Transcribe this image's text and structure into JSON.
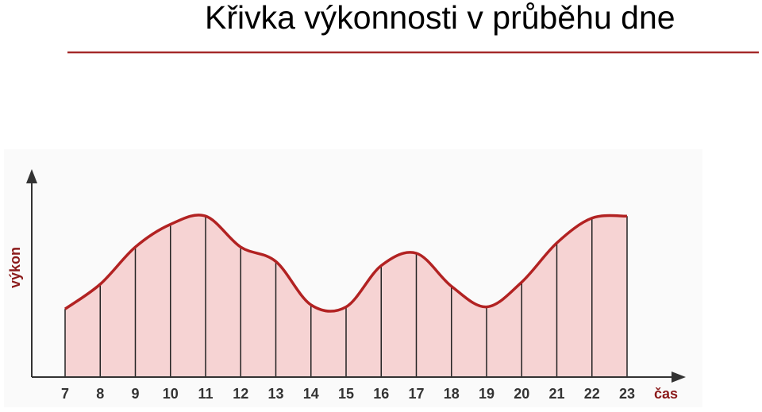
{
  "chart_data": {
    "type": "area-line",
    "title": "Křivka výkonnosti v průběhu dne",
    "y_label": "výkon",
    "x_label": "čas",
    "categories": [
      "7",
      "8",
      "9",
      "10",
      "11",
      "12",
      "13",
      "14",
      "15",
      "16",
      "17",
      "18",
      "19",
      "20",
      "21",
      "22",
      "23"
    ],
    "values": [
      33,
      45,
      63,
      74,
      78,
      63,
      56,
      35,
      34,
      54,
      60,
      44,
      34,
      46,
      65,
      77,
      78
    ],
    "color": "#b22222",
    "fill": "#f6d3d3",
    "ylim": [
      0,
      100
    ]
  }
}
